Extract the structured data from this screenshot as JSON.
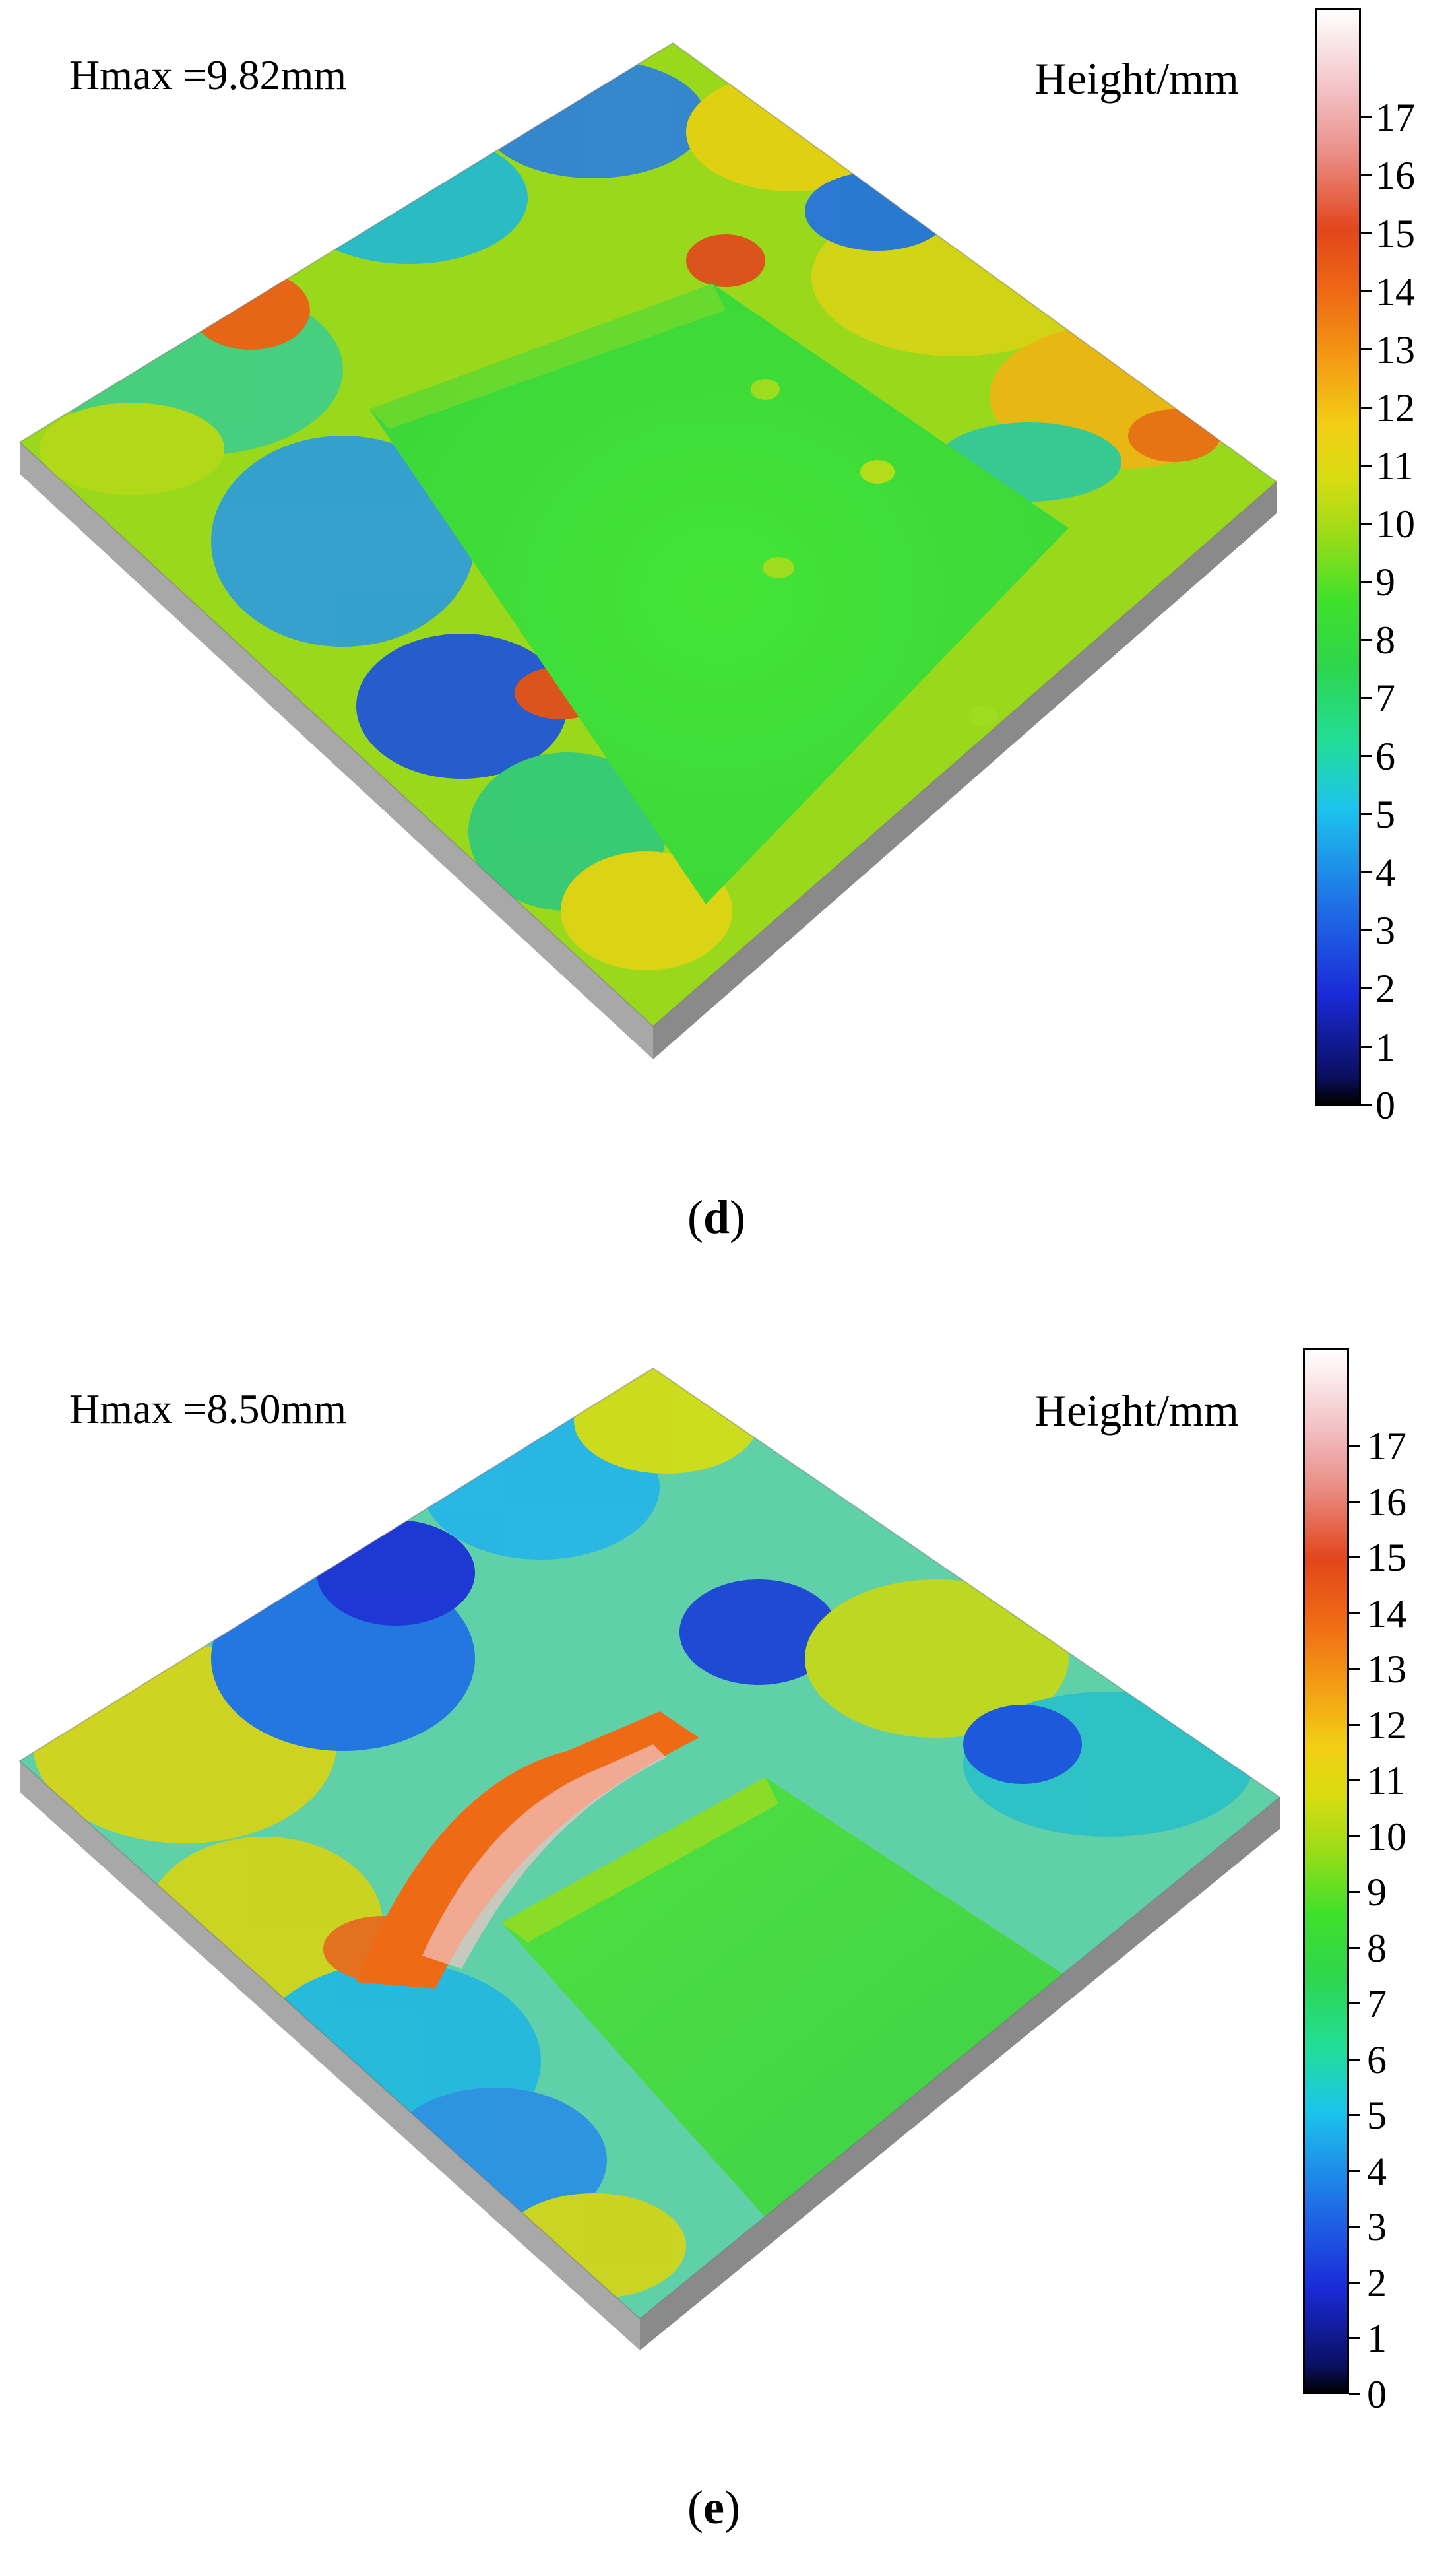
{
  "panels": [
    {
      "id": "d",
      "hmax_label": "Hmax =9.82mm",
      "colorbar_title": "Height/mm",
      "colorbar_ticks": [
        "0",
        "1",
        "2",
        "3",
        "4",
        "5",
        "6",
        "7",
        "8",
        "9",
        "10",
        "11",
        "12",
        "13",
        "14",
        "15",
        "16",
        "17"
      ],
      "caption_open": "(",
      "caption_letter": "d",
      "caption_close": ")"
    },
    {
      "id": "e",
      "hmax_label": "Hmax =8.50mm",
      "colorbar_title": "Height/mm",
      "colorbar_ticks": [
        "0",
        "1",
        "2",
        "3",
        "4",
        "5",
        "6",
        "7",
        "8",
        "9",
        "10",
        "11",
        "12",
        "13",
        "14",
        "15",
        "16",
        "17"
      ],
      "caption_open": "(",
      "caption_letter": "e",
      "caption_close": ")"
    }
  ],
  "colors": {
    "low": "#000000",
    "blue": "#1a2bd8",
    "cyan": "#1cc4ec",
    "green": "#3fe12a",
    "yellow": "#d6dc12",
    "orange": "#f39b14",
    "red": "#e2461c",
    "high": "#ffffff",
    "base_side": "#a8a8a8"
  }
}
